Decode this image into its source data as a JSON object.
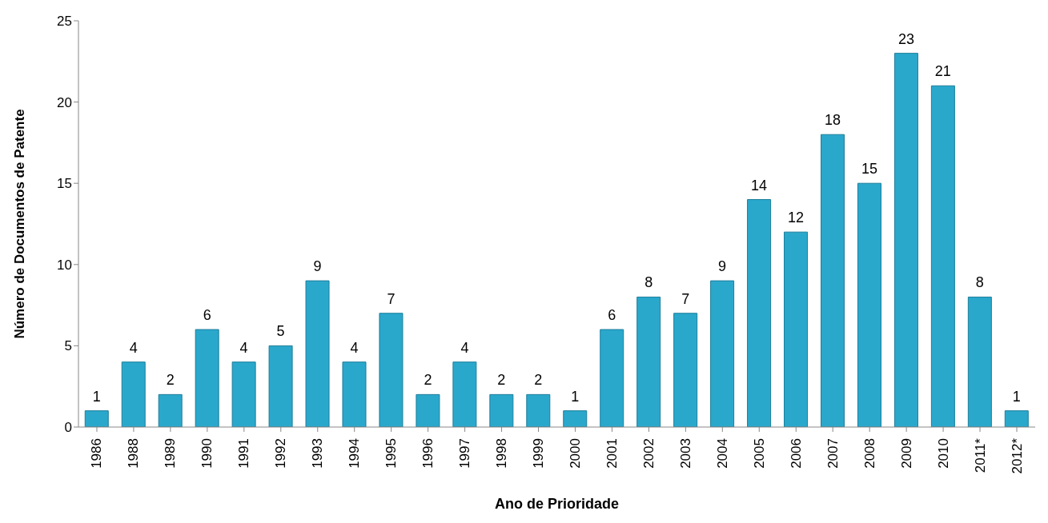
{
  "chart_data": {
    "type": "bar",
    "xlabel": "Ano de Prioridade",
    "ylabel": "Número de Documentos de Patente",
    "categories": [
      "1986",
      "1988",
      "1989",
      "1990",
      "1991",
      "1992",
      "1993",
      "1994",
      "1995",
      "1996",
      "1997",
      "1998",
      "1999",
      "2000",
      "2001",
      "2002",
      "2003",
      "2004",
      "2005",
      "2006",
      "2007",
      "2008",
      "2009",
      "2010",
      "2011*",
      "2012*"
    ],
    "values": [
      1,
      4,
      2,
      6,
      4,
      5,
      9,
      4,
      7,
      2,
      4,
      2,
      2,
      1,
      6,
      8,
      7,
      9,
      14,
      12,
      18,
      15,
      23,
      21,
      8,
      1
    ],
    "color": "#2aa8cc",
    "ylim": [
      0,
      25
    ],
    "yticks": [
      0,
      5,
      10,
      15,
      20,
      25
    ],
    "grid": false,
    "data_labels": true
  }
}
